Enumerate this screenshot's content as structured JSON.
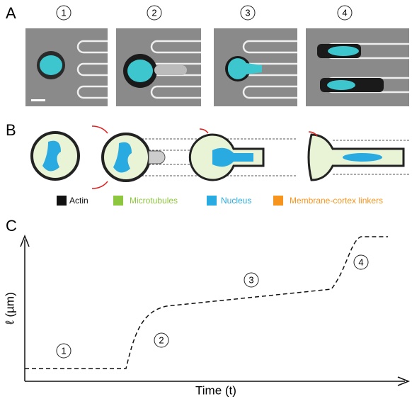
{
  "panels": [
    {
      "label": "A",
      "steps": [
        "1",
        "2",
        "3",
        "4"
      ]
    },
    {
      "label": "B",
      "legend": [
        "Actin",
        "Microtubules",
        "Nucleus",
        "Membrane-cortex linkers"
      ]
    },
    {
      "label": "C",
      "y_label": "ℓ (µm)",
      "x_label": "Time (t)",
      "steps": [
        "1",
        "2",
        "3",
        "4"
      ]
    }
  ]
}
